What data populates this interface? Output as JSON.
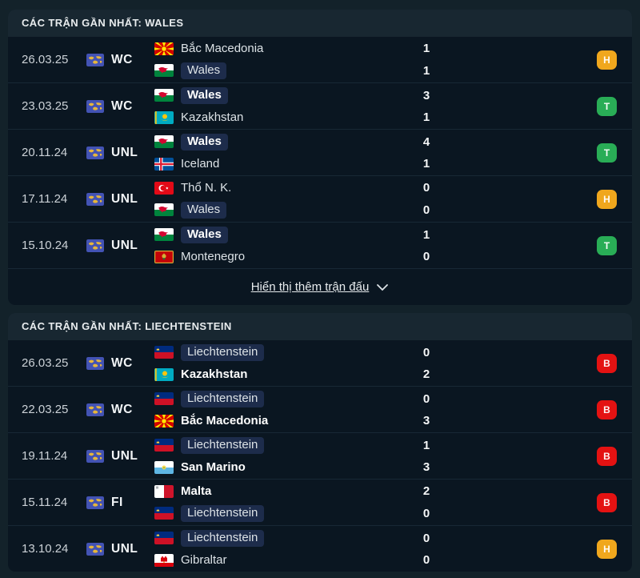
{
  "result_colors": {
    "win": "#29ad56",
    "draw": "#f0a71d",
    "loss": "#e41212"
  },
  "sections": [
    {
      "title": "CÁC TRẬN GẦN NHẤT: WALES",
      "show_more_label": "Hiển thị thêm trận đấu",
      "matches": [
        {
          "date": "26.03.25",
          "competition": "WC",
          "team1": {
            "name": "Bắc Macedonia",
            "flag": "north-macedonia",
            "score": "1",
            "winner": false,
            "highlight": false
          },
          "team2": {
            "name": "Wales",
            "flag": "wales",
            "score": "1",
            "winner": false,
            "highlight": true
          },
          "result": {
            "label": "H",
            "type": "draw"
          }
        },
        {
          "date": "23.03.25",
          "competition": "WC",
          "team1": {
            "name": "Wales",
            "flag": "wales",
            "score": "3",
            "winner": true,
            "highlight": true
          },
          "team2": {
            "name": "Kazakhstan",
            "flag": "kazakhstan",
            "score": "1",
            "winner": false,
            "highlight": false
          },
          "result": {
            "label": "T",
            "type": "win"
          }
        },
        {
          "date": "20.11.24",
          "competition": "UNL",
          "team1": {
            "name": "Wales",
            "flag": "wales",
            "score": "4",
            "winner": true,
            "highlight": true
          },
          "team2": {
            "name": "Iceland",
            "flag": "iceland",
            "score": "1",
            "winner": false,
            "highlight": false
          },
          "result": {
            "label": "T",
            "type": "win"
          }
        },
        {
          "date": "17.11.24",
          "competition": "UNL",
          "team1": {
            "name": "Thổ N. K.",
            "flag": "turkey",
            "score": "0",
            "winner": false,
            "highlight": false
          },
          "team2": {
            "name": "Wales",
            "flag": "wales",
            "score": "0",
            "winner": false,
            "highlight": true
          },
          "result": {
            "label": "H",
            "type": "draw"
          }
        },
        {
          "date": "15.10.24",
          "competition": "UNL",
          "team1": {
            "name": "Wales",
            "flag": "wales",
            "score": "1",
            "winner": true,
            "highlight": true
          },
          "team2": {
            "name": "Montenegro",
            "flag": "montenegro",
            "score": "0",
            "winner": false,
            "highlight": false
          },
          "result": {
            "label": "T",
            "type": "win"
          }
        }
      ]
    },
    {
      "title": "CÁC TRẬN GẦN NHẤT: LIECHTENSTEIN",
      "matches": [
        {
          "date": "26.03.25",
          "competition": "WC",
          "team1": {
            "name": "Liechtenstein",
            "flag": "liechtenstein",
            "score": "0",
            "winner": false,
            "highlight": true
          },
          "team2": {
            "name": "Kazakhstan",
            "flag": "kazakhstan",
            "score": "2",
            "winner": true,
            "highlight": false
          },
          "result": {
            "label": "B",
            "type": "loss"
          }
        },
        {
          "date": "22.03.25",
          "competition": "WC",
          "team1": {
            "name": "Liechtenstein",
            "flag": "liechtenstein",
            "score": "0",
            "winner": false,
            "highlight": true
          },
          "team2": {
            "name": "Bắc Macedonia",
            "flag": "north-macedonia",
            "score": "3",
            "winner": true,
            "highlight": false
          },
          "result": {
            "label": "B",
            "type": "loss"
          }
        },
        {
          "date": "19.11.24",
          "competition": "UNL",
          "team1": {
            "name": "Liechtenstein",
            "flag": "liechtenstein",
            "score": "1",
            "winner": false,
            "highlight": true
          },
          "team2": {
            "name": "San Marino",
            "flag": "san-marino",
            "score": "3",
            "winner": true,
            "highlight": false
          },
          "result": {
            "label": "B",
            "type": "loss"
          }
        },
        {
          "date": "15.11.24",
          "competition": "FI",
          "team1": {
            "name": "Malta",
            "flag": "malta",
            "score": "2",
            "winner": true,
            "highlight": false
          },
          "team2": {
            "name": "Liechtenstein",
            "flag": "liechtenstein",
            "score": "0",
            "winner": false,
            "highlight": true
          },
          "result": {
            "label": "B",
            "type": "loss"
          }
        },
        {
          "date": "13.10.24",
          "competition": "UNL",
          "team1": {
            "name": "Liechtenstein",
            "flag": "liechtenstein",
            "score": "0",
            "winner": false,
            "highlight": true
          },
          "team2": {
            "name": "Gibraltar",
            "flag": "gibraltar",
            "score": "0",
            "winner": false,
            "highlight": false
          },
          "result": {
            "label": "H",
            "type": "draw"
          }
        }
      ]
    }
  ]
}
